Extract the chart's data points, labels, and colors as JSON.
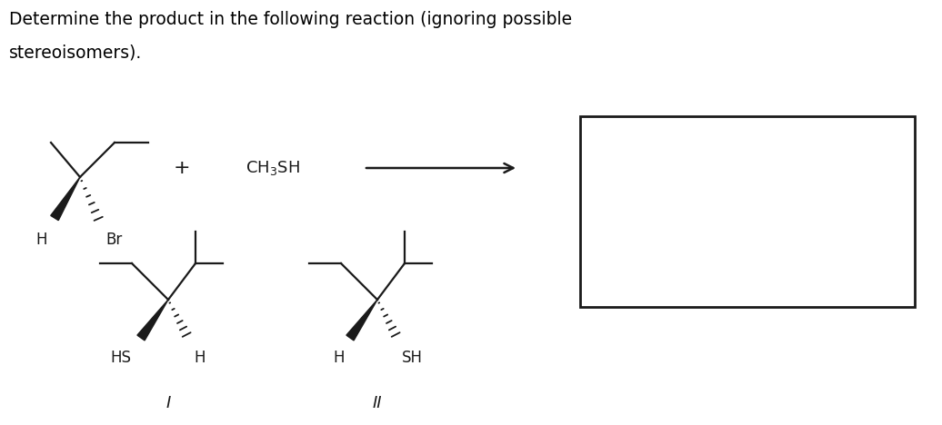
{
  "title_line1": "Determine the product in the following reaction (ignoring possible",
  "title_line2": "stereoisomers).",
  "title_fontsize": 13.5,
  "title_color": "#000000",
  "bg_color": "#ffffff",
  "line_color": "#1a1a1a",
  "text_color": "#1a1a1a",
  "label_I": "I",
  "label_II": "II",
  "figw": 10.36,
  "figh": 4.68
}
